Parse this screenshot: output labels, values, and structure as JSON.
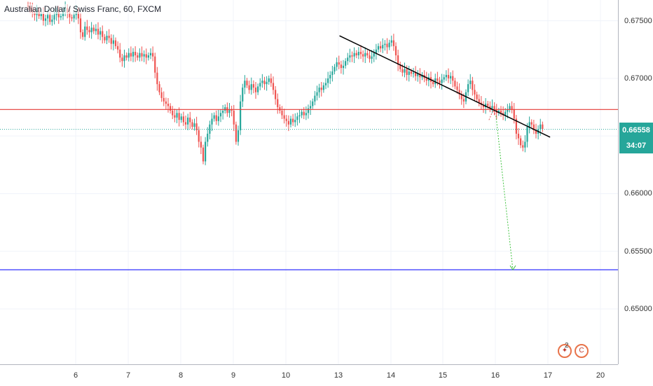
{
  "title": "Australian Dollar / Swiss Franc, 60, FXCM",
  "current_price": "0.66558",
  "countdown": "34:07",
  "colors": {
    "bull": "#26a69a",
    "bear": "#ef5350",
    "resistance": "#e53935",
    "target": "#1a1aff",
    "trendline": "#000000",
    "projection": "#43c443",
    "price_line": "#26a69a"
  },
  "price_axis": [
    "0.67500",
    "0.67000",
    "0.66000",
    "0.65500",
    "0.65000"
  ],
  "time_axis": [
    "6",
    "7",
    "8",
    "9",
    "10",
    "13",
    "14",
    "15",
    "16",
    "17",
    "20"
  ],
  "events": {
    "icons": [
      "economic-event-icon",
      "news-event-icon"
    ],
    "count": "2"
  },
  "chart_data": {
    "type": "candlestick",
    "ylim": [
      0.6452,
      0.6768
    ],
    "horizontal_lines": {
      "resistance": 0.6673,
      "current": 0.66558,
      "target": 0.6534
    },
    "trendline": {
      "from": {
        "x": "13 00:30",
        "y": 0.6737
      },
      "to": {
        "x": "17 01:00",
        "y": 0.6649
      }
    },
    "projection": {
      "from": {
        "x": "15 23:00",
        "y": 0.667
      },
      "to": {
        "x": "16 08:00",
        "y": 0.6534
      }
    },
    "closes": [
      0.6762,
      0.676,
      0.6757,
      0.6755,
      0.6759,
      0.6754,
      0.6756,
      0.675,
      0.6752,
      0.6755,
      0.6749,
      0.6751,
      0.6755,
      0.6758,
      0.6753,
      0.6754,
      0.6758,
      0.6761,
      0.6757,
      0.6753,
      0.6752,
      0.6755,
      0.6758,
      0.6752,
      0.674,
      0.6736,
      0.6745,
      0.6742,
      0.674,
      0.6744,
      0.6741,
      0.6743,
      0.6738,
      0.6741,
      0.6736,
      0.6733,
      0.6737,
      0.6735,
      0.673,
      0.6733,
      0.6728,
      0.6725,
      0.6718,
      0.6715,
      0.672,
      0.6718,
      0.6722,
      0.6719,
      0.6723,
      0.672,
      0.6718,
      0.6722,
      0.6719,
      0.6721,
      0.6718,
      0.672,
      0.6722,
      0.6719,
      0.6705,
      0.6695,
      0.6688,
      0.6683,
      0.668,
      0.6678,
      0.6676,
      0.6672,
      0.6668,
      0.6666,
      0.667,
      0.6664,
      0.6667,
      0.6662,
      0.666,
      0.6666,
      0.6662,
      0.6658,
      0.6661,
      0.6655,
      0.6645,
      0.664,
      0.6628,
      0.6645,
      0.6652,
      0.666,
      0.6665,
      0.6668,
      0.6663,
      0.6667,
      0.667,
      0.6672,
      0.6675,
      0.667,
      0.6673,
      0.6672,
      0.666,
      0.6645,
      0.6655,
      0.668,
      0.6692,
      0.6698,
      0.6694,
      0.669,
      0.6695,
      0.6692,
      0.6688,
      0.6693,
      0.6696,
      0.6698,
      0.6695,
      0.6697,
      0.67,
      0.6696,
      0.669,
      0.6682,
      0.6675,
      0.6672,
      0.6668,
      0.6665,
      0.6663,
      0.666,
      0.6665,
      0.6662,
      0.6664,
      0.6667,
      0.6668,
      0.6671,
      0.6668,
      0.667,
      0.6674,
      0.6676,
      0.668,
      0.6685,
      0.6688,
      0.6692,
      0.669,
      0.6694,
      0.6696,
      0.67,
      0.6703,
      0.6706,
      0.671,
      0.6714,
      0.6712,
      0.6709,
      0.6711,
      0.6715,
      0.6718,
      0.672,
      0.6719,
      0.6722,
      0.672,
      0.6723,
      0.6721,
      0.6719,
      0.6722,
      0.672,
      0.6717,
      0.6719,
      0.6722,
      0.6725,
      0.6728,
      0.6726,
      0.6729,
      0.673,
      0.6727,
      0.6731,
      0.6733,
      0.6728,
      0.672,
      0.6712,
      0.6708,
      0.6705,
      0.6708,
      0.6703,
      0.6706,
      0.6704,
      0.6705,
      0.6702,
      0.6704,
      0.6701,
      0.6703,
      0.67,
      0.6698,
      0.6701,
      0.6697,
      0.6695,
      0.67,
      0.6698,
      0.6696,
      0.6699,
      0.6701,
      0.6703,
      0.67,
      0.6702,
      0.6698,
      0.6693,
      0.669,
      0.6686,
      0.6682,
      0.668,
      0.6688,
      0.6695,
      0.6698,
      0.669,
      0.6686,
      0.6682,
      0.6679,
      0.6677,
      0.6675,
      0.6678,
      0.6676,
      0.6674,
      0.6676,
      0.6673,
      0.667,
      0.6672,
      0.667,
      0.6668,
      0.6671,
      0.6673,
      0.6676,
      0.6673,
      0.6665,
      0.6652,
      0.6648,
      0.6642,
      0.664,
      0.6645,
      0.6658,
      0.6662,
      0.666,
      0.6655,
      0.6652,
      0.6656,
      0.666,
      0.6656
    ]
  }
}
